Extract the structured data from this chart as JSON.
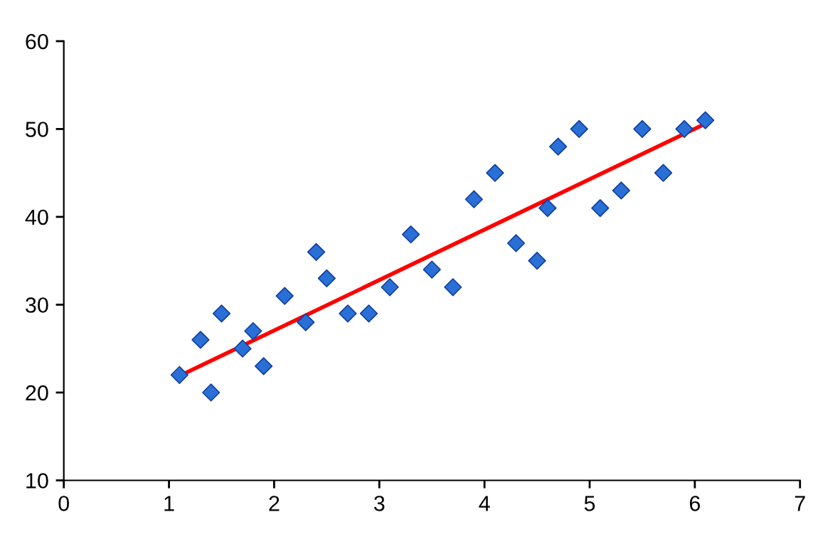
{
  "chart_data": {
    "type": "scatter",
    "xlim": [
      0,
      7
    ],
    "ylim": [
      10,
      60
    ],
    "xticks": [
      0,
      1,
      2,
      3,
      4,
      5,
      6,
      7
    ],
    "yticks": [
      10,
      20,
      30,
      40,
      50,
      60
    ],
    "grid": false,
    "series": [
      {
        "marker": "diamond",
        "color": "#2a6fd6",
        "x": [
          1.1,
          1.3,
          1.4,
          1.5,
          1.7,
          1.8,
          1.9,
          2.1,
          2.3,
          2.4,
          2.5,
          2.7,
          2.9,
          3.1,
          3.3,
          3.5,
          3.7,
          3.9,
          4.1,
          4.3,
          4.5,
          4.6,
          4.7,
          4.9,
          5.1,
          5.3,
          5.5,
          5.7,
          5.9,
          6.1
        ],
        "values": [
          22,
          26,
          20,
          29,
          25,
          27,
          23,
          31,
          28,
          36,
          33,
          29,
          29,
          32,
          38,
          34,
          32,
          42,
          45,
          37,
          35,
          41,
          48,
          50,
          41,
          43,
          50,
          45,
          50,
          51
        ]
      },
      {
        "type": "line",
        "marker": "none",
        "color": "#ff0000",
        "x": [
          1.1,
          6.1
        ],
        "values": [
          21.9,
          50.6
        ]
      }
    ]
  }
}
